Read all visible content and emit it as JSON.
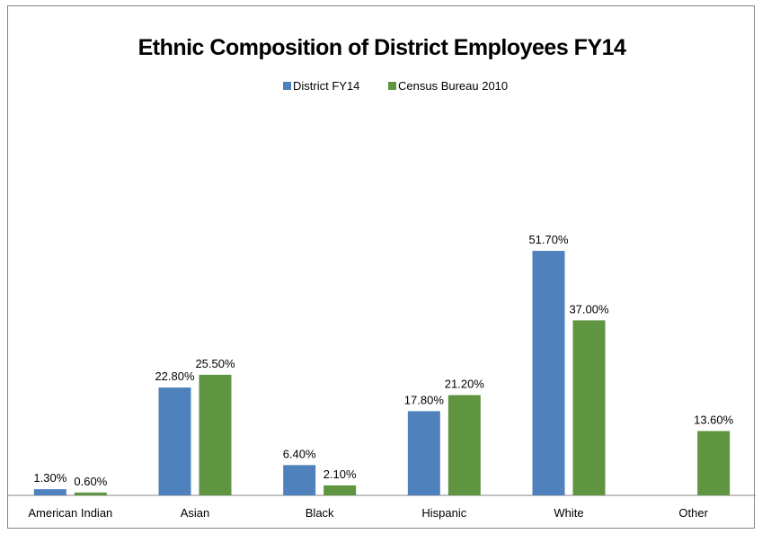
{
  "chart_data": {
    "type": "bar",
    "title": "Ethnic Composition of District Employees FY14",
    "categories": [
      "American Indian",
      "Asian",
      "Black",
      "Hispanic",
      "White",
      "Other"
    ],
    "series": [
      {
        "name": "District FY14",
        "color": "#4F81BD",
        "values": [
          1.3,
          22.8,
          6.4,
          17.8,
          51.7,
          null
        ],
        "labels": [
          "1.30%",
          "22.80%",
          "6.40%",
          "17.80%",
          "51.70%",
          ""
        ]
      },
      {
        "name": "Census Bureau 2010",
        "color": "#5F9441",
        "values": [
          0.6,
          25.5,
          2.1,
          21.2,
          37.0,
          13.6
        ],
        "labels": [
          "0.60%",
          "25.50%",
          "2.10%",
          "21.20%",
          "37.00%",
          "13.60%"
        ]
      }
    ],
    "ylim": [
      0,
      60
    ],
    "grid": false,
    "legend_position": "top"
  }
}
